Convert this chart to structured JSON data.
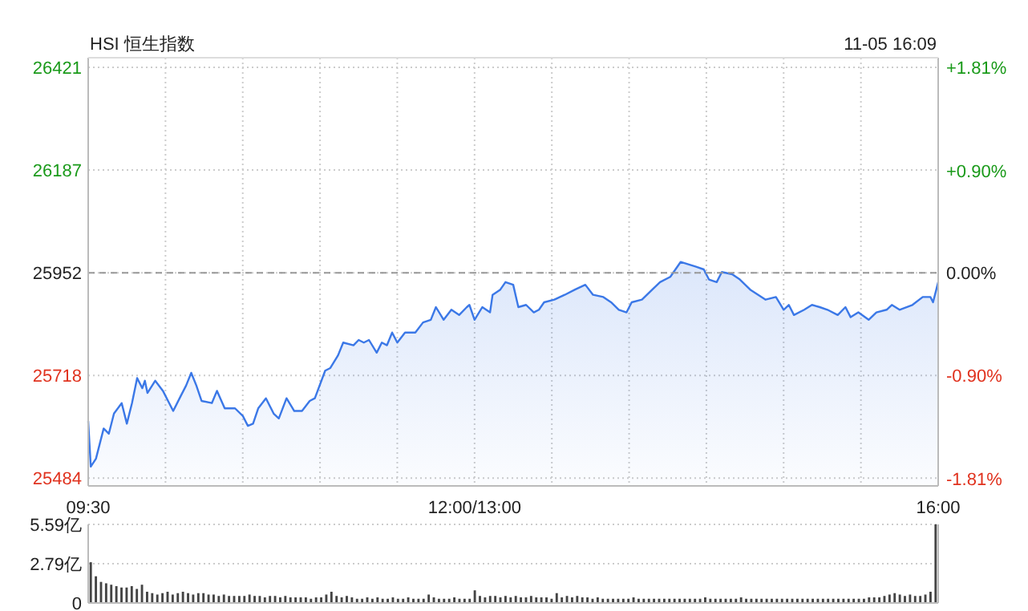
{
  "chart_data": [
    {
      "type": "area",
      "title": "HSI 恒生指数",
      "annotations": [
        "11-05 16:09"
      ],
      "categories": [
        "09:30",
        null,
        null,
        null,
        null,
        null,
        null,
        null,
        null,
        null,
        null,
        null,
        null,
        null,
        null,
        null,
        null,
        null,
        null,
        null,
        null,
        null,
        null,
        null,
        null,
        null,
        null,
        null,
        null,
        null,
        null,
        null,
        null,
        null,
        null,
        null,
        null,
        null,
        null,
        null,
        null,
        null,
        null,
        null,
        null,
        null,
        null,
        null,
        null,
        null,
        null,
        null,
        null,
        null,
        null,
        null,
        null,
        null,
        null,
        null,
        null,
        null,
        null,
        null,
        null,
        null,
        null,
        null,
        null,
        null,
        null,
        null,
        null,
        null,
        null,
        null,
        null,
        null,
        null,
        null,
        null,
        null,
        null,
        null,
        null,
        null,
        null,
        null,
        null,
        null,
        null,
        null,
        null,
        null,
        null,
        null,
        null,
        null,
        null,
        null,
        null,
        null,
        null,
        null,
        null,
        null,
        null,
        null,
        null,
        null,
        null,
        null,
        null,
        null,
        null,
        null,
        null,
        null,
        null,
        null,
        null,
        null,
        null,
        null,
        null,
        null,
        null,
        null,
        null,
        null,
        null,
        null,
        null,
        null,
        null,
        null,
        null,
        null,
        null,
        null,
        null,
        null,
        null,
        null,
        null,
        null,
        null,
        null,
        null,
        null,
        "12:00/13:00",
        null,
        null,
        null,
        null,
        null,
        null,
        null,
        null,
        null,
        null,
        null,
        null,
        null,
        null,
        null,
        null,
        null,
        null,
        null,
        null,
        null,
        null,
        null,
        null,
        null,
        null,
        null,
        null,
        null,
        null,
        null,
        null,
        null,
        null,
        null,
        null,
        null,
        null,
        null,
        null,
        null,
        null,
        null,
        null,
        null,
        null,
        null,
        null,
        null,
        null,
        null,
        null,
        null,
        null,
        null,
        null,
        null,
        null,
        null,
        null,
        null,
        null,
        null,
        null,
        null,
        null,
        null,
        null,
        null,
        null,
        null,
        null,
        null,
        null,
        null,
        null,
        null,
        null,
        null,
        null,
        null,
        null,
        null,
        null,
        null,
        null,
        null,
        null,
        null,
        null,
        null,
        null,
        null,
        null,
        null,
        null,
        null,
        null,
        null,
        null,
        null,
        null,
        null,
        null,
        null,
        null,
        null,
        null,
        null,
        null,
        null,
        null,
        null,
        null,
        null,
        null,
        null,
        null,
        null,
        null,
        null,
        null,
        null,
        null,
        null,
        null,
        null,
        null,
        null,
        null,
        null,
        null,
        null,
        null,
        null,
        null,
        null,
        null,
        null,
        null,
        null,
        null,
        null,
        null,
        null,
        null,
        null,
        null,
        null,
        null,
        null,
        null,
        null,
        null,
        null,
        null,
        null,
        null,
        null,
        null,
        null,
        null,
        null,
        null,
        null,
        null,
        null,
        null,
        null,
        null,
        null,
        null,
        null,
        null,
        null,
        null,
        null,
        null,
        null,
        "16:00"
      ],
      "series": [
        {
          "color": "#3b78e7",
          "values": [
            25614,
            25510,
            null,
            25528,
            null,
            null,
            25597,
            null,
            25585,
            null,
            25631,
            null,
            null,
            25655,
            null,
            25608,
            null,
            25655,
            null,
            25712,
            null,
            25689,
            25706,
            25678,
            null,
            null,
            25706,
            null,
            null,
            25683,
            null,
            25660,
            null,
            25637,
            null,
            null,
            25672,
            null,
            25695,
            null,
            25724,
            null,
            25695,
            null,
            25660,
            null,
            null,
            null,
            25655,
            null,
            25683,
            null,
            null,
            25643,
            null,
            null,
            null,
            25643,
            null,
            null,
            25626,
            null,
            25603,
            null,
            25608,
            null,
            25643,
            null,
            null,
            25666,
            null,
            null,
            25631,
            null,
            25620,
            null,
            null,
            25666,
            null,
            null,
            25637,
            null,
            null,
            25637,
            null,
            null,
            25660,
            null,
            25666,
            null,
            null,
            null,
            25729,
            null,
            25735,
            null,
            null,
            25764,
            null,
            25793,
            null,
            null,
            null,
            25787,
            null,
            25799,
            null,
            25793,
            null,
            25799,
            null,
            null,
            25770,
            null,
            25793,
            null,
            25787,
            null,
            25816,
            null,
            25793,
            null,
            null,
            25816,
            null,
            null,
            null,
            25816,
            null,
            null,
            25839,
            null,
            null,
            25845,
            null,
            25874,
            null,
            null,
            25845,
            null,
            null,
            25868,
            null,
            null,
            25856,
            null,
            null,
            25874,
            25879,
            null,
            25845,
            null,
            null,
            25874,
            null,
            null,
            25862,
            25902,
            null,
            null,
            25914,
            null,
            25931,
            null,
            null,
            25925,
            null,
            25874,
            null,
            null,
            25879,
            null,
            null,
            25862,
            null,
            25868,
            null,
            25885,
            null,
            null,
            null,
            25891,
            null,
            null,
            null,
            25902,
            null,
            null,
            null,
            25914,
            null,
            null,
            null,
            25925,
            null,
            null,
            25902,
            null,
            null,
            null,
            25897,
            null,
            null,
            25885,
            null,
            null,
            25868,
            null,
            null,
            25862,
            null,
            25885,
            null,
            null,
            null,
            25891,
            null,
            null,
            null,
            25914,
            null,
            null,
            25931,
            null,
            null,
            null,
            25943,
            null,
            null,
            null,
            25977,
            null,
            null,
            null,
            null,
            null,
            25966,
            null,
            null,
            25960,
            null,
            25937,
            null,
            null,
            25931,
            null,
            25954,
            null,
            null,
            null,
            25949,
            null,
            null,
            25937,
            null,
            null,
            null,
            25914,
            null,
            null,
            null,
            null,
            null,
            25891,
            null,
            null,
            null,
            25897,
            null,
            null,
            25868,
            null,
            25879,
            null,
            25856,
            null,
            null,
            null,
            25868,
            null,
            null,
            25879,
            null,
            null,
            25874,
            null,
            null,
            25868,
            null,
            null,
            null,
            25856,
            null,
            null,
            25874,
            null,
            25851,
            null,
            null,
            25862,
            null,
            null,
            null,
            25845,
            null,
            null,
            25862,
            null,
            null,
            null,
            25868,
            null,
            25879,
            null,
            null,
            25868,
            null,
            null,
            null,
            null,
            25879,
            null,
            null,
            null,
            25897,
            null,
            null,
            25897,
            25885,
            null,
            25931
          ]
        }
      ],
      "ylim": [
        25466,
        26443
      ],
      "yticks": [
        25484,
        25718,
        25952,
        26187,
        26421
      ],
      "y2lim": [
        -1.873,
        1.892
      ],
      "y2ticks": [
        {
          "value": -1.81,
          "label": "-1.81%"
        },
        {
          "value": -0.9,
          "label": "-0.90%"
        },
        {
          "value": 0,
          "label": "0.00%"
        },
        {
          "value": 0.9,
          "label": "+0.90%"
        },
        {
          "value": 1.81,
          "label": "+1.81%"
        }
      ],
      "ref_lines": [
        {
          "axis": "y",
          "value": 25952,
          "color": "#999999",
          "line_style": "dashed"
        }
      ],
      "grid": true
    },
    {
      "type": "bar",
      "tick_labels": "y",
      "grid": "y",
      "categories": [
        null,
        null,
        null,
        null,
        null,
        null,
        null,
        null,
        null,
        null,
        null,
        null,
        null,
        null,
        null,
        null,
        null,
        null,
        null,
        null,
        null,
        null,
        null,
        null,
        null,
        null,
        null,
        null,
        null,
        null,
        null,
        null,
        null,
        null,
        null,
        null,
        null,
        null,
        null,
        null,
        null,
        null,
        null,
        null,
        null,
        null,
        null,
        null,
        null,
        null,
        null,
        null,
        null,
        null,
        null,
        null,
        null,
        null,
        null,
        null,
        null,
        null,
        null,
        null,
        null,
        null,
        null,
        null,
        null,
        null,
        null,
        null,
        null,
        null,
        null,
        null,
        null,
        null,
        null,
        null,
        null,
        null,
        null,
        null,
        null,
        null,
        null,
        null,
        null,
        null,
        null,
        null,
        null,
        null,
        null,
        null,
        null,
        null,
        null,
        null,
        null,
        null,
        null,
        null,
        null,
        null,
        null,
        null,
        null,
        null,
        null,
        null,
        null,
        null,
        null,
        null,
        null,
        null,
        null,
        null,
        null,
        null,
        null,
        null,
        null,
        null,
        null,
        null,
        null,
        null,
        null,
        null,
        null,
        null,
        null,
        null,
        null,
        null,
        null,
        null,
        null,
        null,
        null,
        null,
        null,
        null,
        null,
        null,
        null,
        null,
        null,
        null,
        null,
        null,
        null,
        null,
        null,
        null,
        null,
        null,
        null,
        null,
        null,
        null,
        null,
        null
      ],
      "series": [
        {
          "color": "#444444",
          "values": [
            2.9,
            1.9,
            1.5,
            1.4,
            1.3,
            1.2,
            1.1,
            1.1,
            1.2,
            1.0,
            1.3,
            0.8,
            0.7,
            0.6,
            0.7,
            0.8,
            0.6,
            0.7,
            0.8,
            0.7,
            0.6,
            0.7,
            0.7,
            0.6,
            0.6,
            0.5,
            0.6,
            0.5,
            0.5,
            0.5,
            0.5,
            0.6,
            0.5,
            0.5,
            0.4,
            0.5,
            0.5,
            0.4,
            0.5,
            0.4,
            0.4,
            0.4,
            0.4,
            0.3,
            0.4,
            0.4,
            0.6,
            0.8,
            0.5,
            0.4,
            0.5,
            0.4,
            0.3,
            0.3,
            0.4,
            0.3,
            0.4,
            0.3,
            0.3,
            0.4,
            0.3,
            0.3,
            0.4,
            0.3,
            0.3,
            0.3,
            0.6,
            0.4,
            0.3,
            0.3,
            0.3,
            0.4,
            0.3,
            0.3,
            0.3,
            0.9,
            0.5,
            0.4,
            0.5,
            0.5,
            0.4,
            0.5,
            0.4,
            0.5,
            0.4,
            0.4,
            0.5,
            0.4,
            0.4,
            0.4,
            0.3,
            0.7,
            0.4,
            0.5,
            0.4,
            0.5,
            0.4,
            0.4,
            0.3,
            0.4,
            0.3,
            0.3,
            0.3,
            0.3,
            0.3,
            0.3,
            0.4,
            0.3,
            0.3,
            0.3,
            0.3,
            0.3,
            0.3,
            0.3,
            0.3,
            0.3,
            0.3,
            0.3,
            0.3,
            0.3,
            0.4,
            0.3,
            0.3,
            0.3,
            0.3,
            0.3,
            0.3,
            0.4,
            0.3,
            0.3,
            0.3,
            0.3,
            0.3,
            0.3,
            0.3,
            0.3,
            0.3,
            0.3,
            0.3,
            0.3,
            0.3,
            0.3,
            0.3,
            0.3,
            0.3,
            0.3,
            0.3,
            0.3,
            0.3,
            0.3,
            0.3,
            0.3,
            0.4,
            0.4,
            0.4,
            0.5,
            0.6,
            0.7,
            0.6,
            0.5,
            0.6,
            0.5,
            0.5,
            0.6,
            0.8,
            5.59
          ]
        }
      ],
      "ylim": [
        0,
        5.59
      ],
      "yticks": [
        0,
        {
          "value": 2.79,
          "label": "2.79亿"
        },
        {
          "value": 5.59,
          "label": "5.59亿"
        }
      ]
    }
  ]
}
